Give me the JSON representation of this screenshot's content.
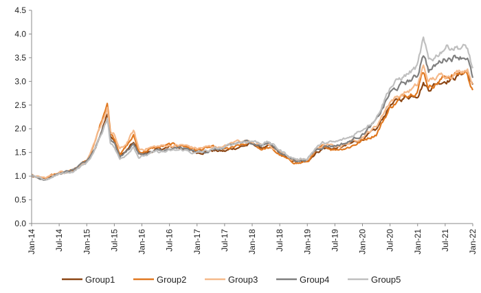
{
  "chart_data": {
    "type": "line",
    "title": "",
    "xlabel": "",
    "ylabel": "",
    "ylim": [
      0,
      4.5
    ],
    "yticks": [
      "0.0",
      "0.5",
      "1.0",
      "1.5",
      "2.0",
      "2.5",
      "3.0",
      "3.5",
      "4.0",
      "4.5"
    ],
    "xticks": [
      "Jan-14",
      "Jul-14",
      "Jan-15",
      "Jul-15",
      "Jan-16",
      "Jul-16",
      "Jan-17",
      "Jul-17",
      "Jan-18",
      "Jul-18",
      "Jan-19",
      "Jul-19",
      "Jan-20",
      "Jul-20",
      "Jan-21",
      "Jul-21",
      "Jan-22"
    ],
    "grid": false,
    "legend_position": "bottom",
    "x_unit": "half-year index (0 = Jan-14, 16 = Jan-22)",
    "series": [
      {
        "name": "Group1",
        "color": "#8B4513",
        "points": [
          [
            0,
            1.0
          ],
          [
            0.25,
            0.95
          ],
          [
            0.5,
            0.93
          ],
          [
            1,
            1.05
          ],
          [
            1.5,
            1.12
          ],
          [
            2,
            1.3
          ],
          [
            2.3,
            1.6
          ],
          [
            2.6,
            2.1
          ],
          [
            2.75,
            2.3
          ],
          [
            2.85,
            1.85
          ],
          [
            3,
            1.75
          ],
          [
            3.2,
            1.45
          ],
          [
            3.4,
            1.5
          ],
          [
            3.7,
            1.7
          ],
          [
            3.9,
            1.45
          ],
          [
            4.2,
            1.5
          ],
          [
            4.5,
            1.55
          ],
          [
            5,
            1.6
          ],
          [
            5.5,
            1.6
          ],
          [
            6,
            1.5
          ],
          [
            6.5,
            1.55
          ],
          [
            7,
            1.52
          ],
          [
            7.5,
            1.62
          ],
          [
            8,
            1.68
          ],
          [
            8.3,
            1.6
          ],
          [
            8.6,
            1.62
          ],
          [
            9,
            1.48
          ],
          [
            9.4,
            1.32
          ],
          [
            9.7,
            1.3
          ],
          [
            10,
            1.32
          ],
          [
            10.3,
            1.5
          ],
          [
            10.6,
            1.6
          ],
          [
            11,
            1.58
          ],
          [
            11.5,
            1.65
          ],
          [
            12,
            1.8
          ],
          [
            12.5,
            1.95
          ],
          [
            13,
            2.5
          ],
          [
            13.5,
            2.65
          ],
          [
            14,
            2.75
          ],
          [
            14.2,
            3.0
          ],
          [
            14.4,
            2.85
          ],
          [
            14.6,
            2.95
          ],
          [
            15,
            3.05
          ],
          [
            15.4,
            3.1
          ],
          [
            15.8,
            3.25
          ],
          [
            16,
            2.9
          ]
        ]
      },
      {
        "name": "Group2",
        "color": "#E07820",
        "points": [
          [
            0,
            1.02
          ],
          [
            0.25,
            0.97
          ],
          [
            0.5,
            0.95
          ],
          [
            1,
            1.06
          ],
          [
            1.5,
            1.14
          ],
          [
            2,
            1.32
          ],
          [
            2.3,
            1.7
          ],
          [
            2.6,
            2.3
          ],
          [
            2.75,
            2.6
          ],
          [
            2.85,
            1.95
          ],
          [
            3,
            1.8
          ],
          [
            3.2,
            1.5
          ],
          [
            3.4,
            1.6
          ],
          [
            3.7,
            1.85
          ],
          [
            3.9,
            1.5
          ],
          [
            4.2,
            1.55
          ],
          [
            4.5,
            1.6
          ],
          [
            5,
            1.65
          ],
          [
            5.5,
            1.65
          ],
          [
            6,
            1.55
          ],
          [
            6.5,
            1.6
          ],
          [
            7,
            1.55
          ],
          [
            7.5,
            1.62
          ],
          [
            8,
            1.7
          ],
          [
            8.3,
            1.58
          ],
          [
            8.6,
            1.6
          ],
          [
            9,
            1.45
          ],
          [
            9.4,
            1.3
          ],
          [
            9.7,
            1.28
          ],
          [
            10,
            1.3
          ],
          [
            10.3,
            1.5
          ],
          [
            10.6,
            1.62
          ],
          [
            11,
            1.57
          ],
          [
            11.5,
            1.62
          ],
          [
            12,
            1.75
          ],
          [
            12.5,
            1.9
          ],
          [
            13,
            2.45
          ],
          [
            13.5,
            2.7
          ],
          [
            14,
            2.85
          ],
          [
            14.2,
            3.25
          ],
          [
            14.4,
            2.9
          ],
          [
            14.6,
            2.95
          ],
          [
            15,
            3.1
          ],
          [
            15.4,
            3.15
          ],
          [
            15.8,
            3.2
          ],
          [
            16,
            2.8
          ]
        ]
      },
      {
        "name": "Group3",
        "color": "#F5B98A",
        "points": [
          [
            0,
            1.03
          ],
          [
            0.25,
            0.98
          ],
          [
            0.5,
            0.96
          ],
          [
            1,
            1.08
          ],
          [
            1.5,
            1.15
          ],
          [
            2,
            1.33
          ],
          [
            2.3,
            1.68
          ],
          [
            2.6,
            2.2
          ],
          [
            2.75,
            2.45
          ],
          [
            2.85,
            1.9
          ],
          [
            3,
            1.85
          ],
          [
            3.2,
            1.55
          ],
          [
            3.4,
            1.65
          ],
          [
            3.7,
            1.95
          ],
          [
            3.9,
            1.55
          ],
          [
            4.2,
            1.6
          ],
          [
            4.5,
            1.62
          ],
          [
            5,
            1.65
          ],
          [
            5.5,
            1.65
          ],
          [
            6,
            1.58
          ],
          [
            6.5,
            1.62
          ],
          [
            7,
            1.62
          ],
          [
            7.5,
            1.75
          ],
          [
            8,
            1.75
          ],
          [
            8.3,
            1.68
          ],
          [
            8.6,
            1.68
          ],
          [
            9,
            1.5
          ],
          [
            9.4,
            1.36
          ],
          [
            9.7,
            1.33
          ],
          [
            10,
            1.35
          ],
          [
            10.3,
            1.55
          ],
          [
            10.6,
            1.65
          ],
          [
            11,
            1.62
          ],
          [
            11.5,
            1.7
          ],
          [
            12,
            1.85
          ],
          [
            12.5,
            2.05
          ],
          [
            13,
            2.6
          ],
          [
            13.5,
            2.75
          ],
          [
            14,
            2.9
          ],
          [
            14.2,
            3.3
          ],
          [
            14.4,
            3.0
          ],
          [
            14.6,
            3.05
          ],
          [
            15,
            3.15
          ],
          [
            15.4,
            3.2
          ],
          [
            15.8,
            3.3
          ],
          [
            16,
            3.0
          ]
        ]
      },
      {
        "name": "Group4",
        "color": "#7F7F7F",
        "points": [
          [
            0,
            1.01
          ],
          [
            0.25,
            0.96
          ],
          [
            0.5,
            0.94
          ],
          [
            1,
            1.05
          ],
          [
            1.5,
            1.12
          ],
          [
            2,
            1.3
          ],
          [
            2.3,
            1.6
          ],
          [
            2.6,
            2.05
          ],
          [
            2.75,
            2.25
          ],
          [
            2.85,
            1.8
          ],
          [
            3,
            1.7
          ],
          [
            3.2,
            1.42
          ],
          [
            3.4,
            1.5
          ],
          [
            3.7,
            1.7
          ],
          [
            3.9,
            1.45
          ],
          [
            4.2,
            1.48
          ],
          [
            4.5,
            1.52
          ],
          [
            5,
            1.55
          ],
          [
            5.5,
            1.58
          ],
          [
            6,
            1.5
          ],
          [
            6.5,
            1.55
          ],
          [
            7,
            1.58
          ],
          [
            7.5,
            1.7
          ],
          [
            8,
            1.72
          ],
          [
            8.3,
            1.65
          ],
          [
            8.6,
            1.7
          ],
          [
            9,
            1.52
          ],
          [
            9.4,
            1.37
          ],
          [
            9.7,
            1.33
          ],
          [
            10,
            1.36
          ],
          [
            10.3,
            1.55
          ],
          [
            10.6,
            1.65
          ],
          [
            11,
            1.65
          ],
          [
            11.5,
            1.72
          ],
          [
            12,
            1.9
          ],
          [
            12.5,
            2.15
          ],
          [
            13,
            2.75
          ],
          [
            13.5,
            2.95
          ],
          [
            14,
            3.1
          ],
          [
            14.2,
            3.65
          ],
          [
            14.4,
            3.25
          ],
          [
            14.6,
            3.3
          ],
          [
            15,
            3.5
          ],
          [
            15.4,
            3.55
          ],
          [
            15.8,
            3.55
          ],
          [
            16,
            3.05
          ]
        ]
      },
      {
        "name": "Group5",
        "color": "#BFBFBF",
        "points": [
          [
            0,
            1.0
          ],
          [
            0.25,
            0.95
          ],
          [
            0.5,
            0.92
          ],
          [
            1,
            1.04
          ],
          [
            1.5,
            1.1
          ],
          [
            2,
            1.28
          ],
          [
            2.3,
            1.55
          ],
          [
            2.6,
            2.0
          ],
          [
            2.75,
            2.25
          ],
          [
            2.85,
            1.75
          ],
          [
            3,
            1.62
          ],
          [
            3.2,
            1.35
          ],
          [
            3.4,
            1.45
          ],
          [
            3.7,
            1.65
          ],
          [
            3.9,
            1.4
          ],
          [
            4.2,
            1.45
          ],
          [
            4.5,
            1.5
          ],
          [
            5,
            1.52
          ],
          [
            5.5,
            1.55
          ],
          [
            6,
            1.48
          ],
          [
            6.5,
            1.55
          ],
          [
            7,
            1.6
          ],
          [
            7.5,
            1.72
          ],
          [
            8,
            1.75
          ],
          [
            8.3,
            1.7
          ],
          [
            8.6,
            1.72
          ],
          [
            9,
            1.55
          ],
          [
            9.4,
            1.4
          ],
          [
            9.7,
            1.35
          ],
          [
            10,
            1.38
          ],
          [
            10.3,
            1.6
          ],
          [
            10.6,
            1.7
          ],
          [
            11,
            1.7
          ],
          [
            11.5,
            1.8
          ],
          [
            12,
            2.0
          ],
          [
            12.5,
            2.25
          ],
          [
            13,
            2.9
          ],
          [
            13.5,
            3.1
          ],
          [
            14,
            3.3
          ],
          [
            14.2,
            3.85
          ],
          [
            14.4,
            3.4
          ],
          [
            14.6,
            3.5
          ],
          [
            15,
            3.75
          ],
          [
            15.4,
            3.75
          ],
          [
            15.8,
            3.7
          ],
          [
            16,
            3.25
          ]
        ]
      }
    ]
  }
}
